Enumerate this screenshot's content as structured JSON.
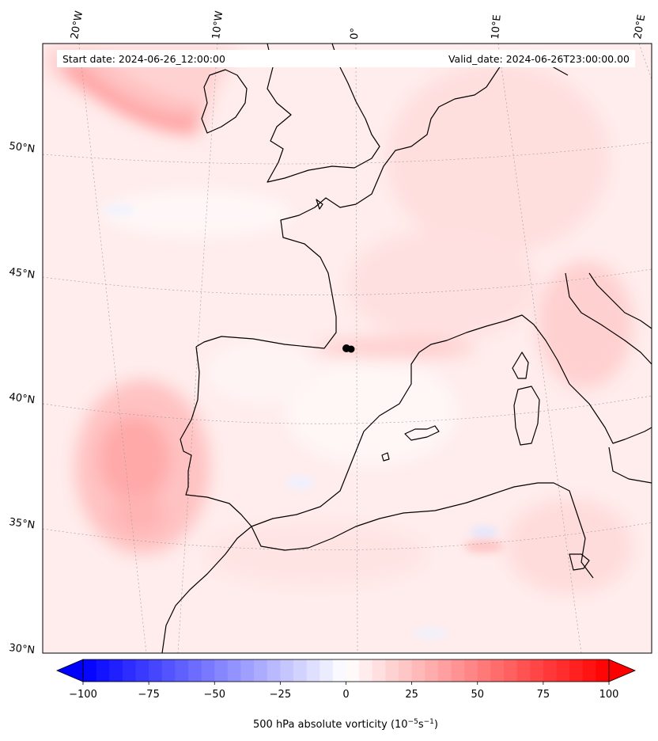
{
  "header": {
    "start_date": "Start date: 2024-06-26_12:00:00",
    "valid_date": "Valid_date: 2024-06-26T23:00:00.00"
  },
  "map": {
    "longitude_labels": [
      "20°W",
      "10°W",
      "0°",
      "10°E",
      "20°E"
    ],
    "latitude_labels": [
      "50°N",
      "45°N",
      "40°N",
      "35°N",
      "30°N"
    ],
    "gridlines": true,
    "coastline_color": "#000000",
    "field_colormap": "bwr"
  },
  "colorbar": {
    "label_main": "500 hPa absolute vorticity (10",
    "label_exp1": "−5",
    "label_mid": "s",
    "label_exp2": "−1",
    "label_close": ")",
    "min": -100,
    "max": 100,
    "extend": "both",
    "ticks": [
      "−100",
      "−75",
      "−50",
      "−25",
      "0",
      "25",
      "50",
      "75",
      "100"
    ],
    "colors": {
      "negative": "#0000ff",
      "zero": "#ffffff",
      "positive": "#ff0000"
    }
  }
}
